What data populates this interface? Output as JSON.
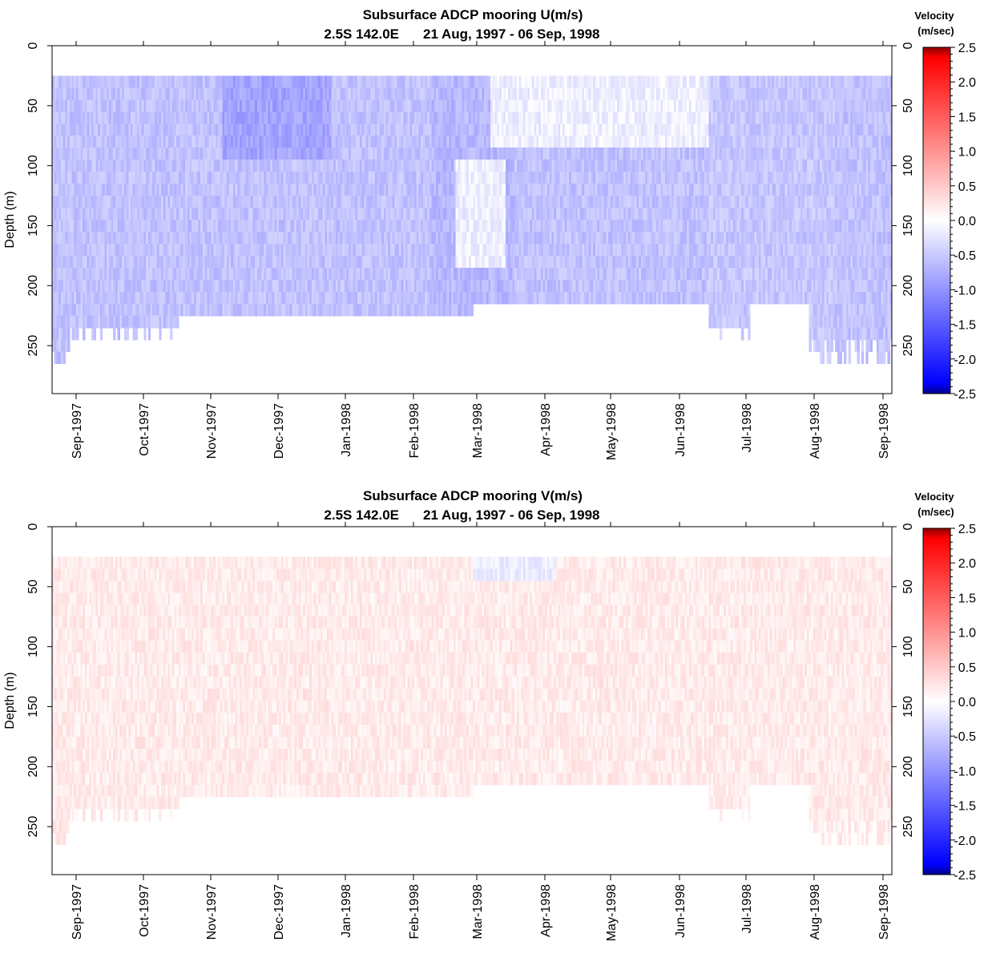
{
  "chart_data": [
    {
      "type": "heatmap",
      "title": "Subsurface ADCP mooring U(m/s)",
      "subtitle_location": "2.5S 142.0E",
      "subtitle_dates": "21 Aug, 1997 - 06 Sep, 1998",
      "ylabel": "Depth (m)",
      "xlabel": "",
      "x_ticks": [
        "Sep-1997",
        "Oct-1997",
        "Nov-1997",
        "Dec-1997",
        "Jan-1998",
        "Feb-1998",
        "Mar-1998",
        "Apr-1998",
        "May-1998",
        "Jun-1998",
        "Jul-1998",
        "Aug-1998",
        "Sep-1998"
      ],
      "y_ticks": [
        "0",
        "50",
        "100",
        "150",
        "200",
        "250"
      ],
      "y_range_m": [
        0,
        290
      ],
      "x_range": [
        "1997-08-21",
        "1998-09-06"
      ],
      "colorbar": {
        "title_line1": "Velocity",
        "title_line2": "(m/sec)",
        "ticks": [
          "2.5",
          "2.0",
          "1.5",
          "1.0",
          "0.5",
          "0.0",
          "-0.5",
          "-1.0",
          "-1.5",
          "-2.0",
          "-2.5"
        ],
        "range": [
          -2.5,
          2.5
        ]
      },
      "data_depth_range_m": [
        25,
        225
      ],
      "mean_velocity_approx": -0.6,
      "notable_features": "Westward (negative) flow throughout; strongest about -0.9 m/s in Nov-Dec 1997 near 25-75 m; weak/near-zero flow in Mar 1998 between 100-175 m and near surface Mar-May 1998"
    },
    {
      "type": "heatmap",
      "title": "Subsurface ADCP mooring V(m/s)",
      "subtitle_location": "2.5S 142.0E",
      "subtitle_dates": "21 Aug, 1997 - 06 Sep, 1998",
      "ylabel": "Depth (m)",
      "xlabel": "",
      "x_ticks": [
        "Sep-1997",
        "Oct-1997",
        "Nov-1997",
        "Dec-1997",
        "Jan-1998",
        "Feb-1998",
        "Mar-1998",
        "Apr-1998",
        "May-1998",
        "Jun-1998",
        "Jul-1998",
        "Aug-1998",
        "Sep-1998"
      ],
      "y_ticks": [
        "0",
        "50",
        "100",
        "150",
        "200",
        "250"
      ],
      "y_range_m": [
        0,
        290
      ],
      "x_range": [
        "1997-08-21",
        "1998-09-06"
      ],
      "colorbar": {
        "title_line1": "Velocity",
        "title_line2": "(m/sec)",
        "ticks": [
          "2.5",
          "2.0",
          "1.5",
          "1.0",
          "0.5",
          "0.0",
          "-0.5",
          "-1.0",
          "-1.5",
          "-2.0",
          "-2.5"
        ],
        "range": [
          -2.5,
          2.5
        ]
      },
      "data_depth_range_m": [
        25,
        225
      ],
      "mean_velocity_approx": 0.2,
      "notable_features": "Weak northward (positive) flow about 0.1-0.3 m/s at most depths; slightly negative patches near surface Mar-Apr 1998"
    }
  ],
  "colors": {
    "max": "#8b0000",
    "positive": "#ff0000",
    "zero": "#ffffff",
    "negative": "#0000ff",
    "min": "#00008b"
  }
}
